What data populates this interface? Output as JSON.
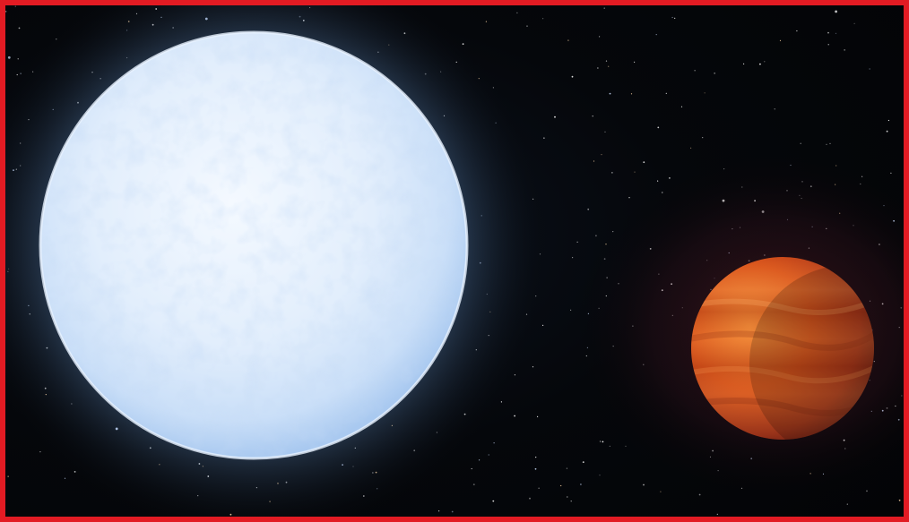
{
  "scene": {
    "frame_color": "#e21b23",
    "background_color": "#05070b",
    "subjects": [
      {
        "icon": "hot-white-blue-star",
        "color": "#dfeefd"
      },
      {
        "icon": "hot-jupiter-exoplanet",
        "color": "#d9531a"
      }
    ],
    "planet_haze_color": "#5a1b22"
  }
}
